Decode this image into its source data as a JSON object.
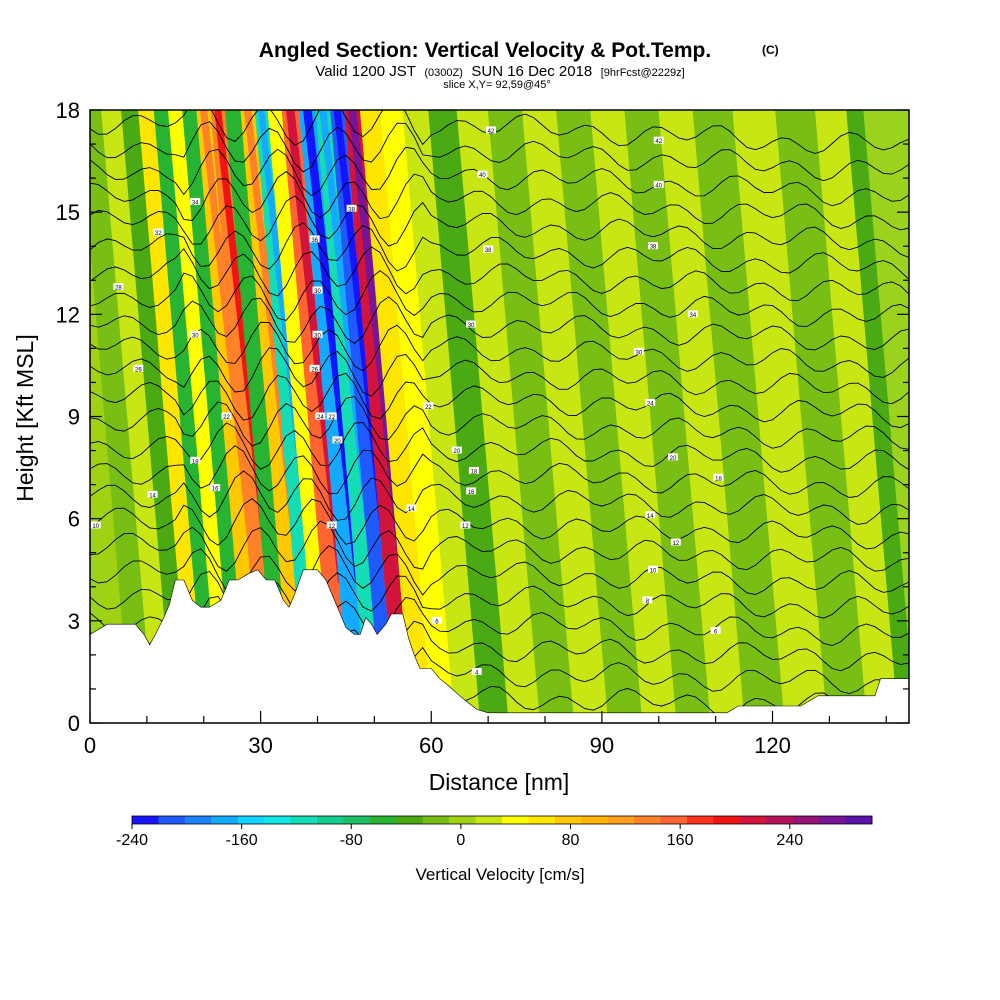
{
  "chart_data": {
    "type": "heatmap",
    "title": "Angled Section: Vertical Velocity & Pot.Temp.",
    "title_tag": "(C)",
    "subtitle_parts": [
      "Valid 1200 JST",
      "(0300Z)",
      "SUN 16 Dec 2018",
      "[9hrFcst@2229z]"
    ],
    "subtitle_line2": "slice X,Y= 92,59@45°",
    "xlabel": "Distance [nm]",
    "ylabel": "Height [Kft MSL]",
    "xlim": [
      0,
      144
    ],
    "ylim": [
      0,
      18
    ],
    "x_ticks": [
      0,
      30,
      60,
      90,
      120
    ],
    "y_ticks": [
      0,
      3,
      6,
      9,
      12,
      15,
      18
    ],
    "grid": false,
    "colorbar": {
      "label": "Vertical Velocity [cm/s]",
      "min": -240,
      "max": 300,
      "step": 20,
      "tick_values": [
        -240,
        -160,
        -80,
        0,
        80,
        160,
        240
      ],
      "colors": [
        "#1414ff",
        "#1e5aff",
        "#1e82ff",
        "#14aaff",
        "#14d2ff",
        "#14e6e6",
        "#14dcb4",
        "#14cd8c",
        "#1ebe64",
        "#28b432",
        "#4baa14",
        "#78be14",
        "#a0d214",
        "#c8e614",
        "#ffff00",
        "#ffe600",
        "#ffc800",
        "#ffb400",
        "#ffa01e",
        "#ff8228",
        "#ff6432",
        "#ff321e",
        "#f01414",
        "#d2143c",
        "#b4145a",
        "#961478",
        "#781496",
        "#5a14aa"
      ]
    },
    "vertical_velocity_bands": [
      {
        "x": 3,
        "v": 10
      },
      {
        "x": 7,
        "v": -20
      },
      {
        "x": 11,
        "v": 30
      },
      {
        "x": 14,
        "v": -30
      },
      {
        "x": 17,
        "v": 60
      },
      {
        "x": 19.5,
        "v": -60
      },
      {
        "x": 22,
        "v": 40
      },
      {
        "x": 24.5,
        "v": -50
      },
      {
        "x": 27,
        "v": 90
      },
      {
        "x": 29.5,
        "v": 150
      },
      {
        "x": 32,
        "v": -60
      },
      {
        "x": 35,
        "v": 80
      },
      {
        "x": 37,
        "v": -110
      },
      {
        "x": 39.5,
        "v": 50
      },
      {
        "x": 42,
        "v": 170
      },
      {
        "x": 45.5,
        "v": -170
      },
      {
        "x": 48,
        "v": -120
      },
      {
        "x": 50.5,
        "v": -220
      },
      {
        "x": 53,
        "v": 230
      },
      {
        "x": 56,
        "v": 60
      },
      {
        "x": 60,
        "v": 40
      },
      {
        "x": 64,
        "v": 30
      },
      {
        "x": 69,
        "v": -40
      },
      {
        "x": 74,
        "v": 20
      },
      {
        "x": 80,
        "v": -20
      },
      {
        "x": 86,
        "v": 20
      },
      {
        "x": 92,
        "v": -10
      },
      {
        "x": 98,
        "v": 30
      },
      {
        "x": 104,
        "v": -20
      },
      {
        "x": 110,
        "v": 20
      },
      {
        "x": 116,
        "v": -10
      },
      {
        "x": 124,
        "v": 20
      },
      {
        "x": 131,
        "v": -20
      },
      {
        "x": 138,
        "v": 30
      },
      {
        "x": 142,
        "v": -30
      }
    ],
    "theta_contour_levels": 24,
    "terrain": [
      [
        0,
        2.6
      ],
      [
        3,
        2.9
      ],
      [
        8,
        2.9
      ],
      [
        9.5,
        2.6
      ],
      [
        10.5,
        2.3
      ],
      [
        11.5,
        2.6
      ],
      [
        13,
        3.1
      ],
      [
        14,
        3.5
      ],
      [
        15,
        4.2
      ],
      [
        16.5,
        4.2
      ],
      [
        18,
        3.6
      ],
      [
        19.5,
        3.4
      ],
      [
        21,
        3.4
      ],
      [
        23,
        3.6
      ],
      [
        24.5,
        4.2
      ],
      [
        26,
        4.2
      ],
      [
        28,
        4.4
      ],
      [
        29.5,
        4.5
      ],
      [
        31,
        4.2
      ],
      [
        32.5,
        4.2
      ],
      [
        34,
        3.6
      ],
      [
        35,
        3.4
      ],
      [
        36,
        3.8
      ],
      [
        37.5,
        4.5
      ],
      [
        40,
        4.5
      ],
      [
        41.5,
        4.2
      ],
      [
        42.5,
        3.8
      ],
      [
        44,
        3.2
      ],
      [
        45,
        2.8
      ],
      [
        46.5,
        2.6
      ],
      [
        47.5,
        2.6
      ],
      [
        48.5,
        3.1
      ],
      [
        49.5,
        2.9
      ],
      [
        50.5,
        2.6
      ],
      [
        52,
        2.9
      ],
      [
        53,
        3.2
      ],
      [
        55,
        3.2
      ],
      [
        56,
        2.5
      ],
      [
        57,
        2.0
      ],
      [
        58,
        1.6
      ],
      [
        60,
        1.6
      ],
      [
        61.5,
        1.3
      ],
      [
        63,
        1.1
      ],
      [
        65,
        0.8
      ],
      [
        66.5,
        0.6
      ],
      [
        68,
        0.4
      ],
      [
        70,
        0.3
      ],
      [
        80,
        0.3
      ],
      [
        95,
        0.3
      ],
      [
        112,
        0.3
      ],
      [
        114,
        0.5
      ],
      [
        125,
        0.5
      ],
      [
        128,
        0.8
      ],
      [
        138,
        0.8
      ],
      [
        139,
        1.3
      ],
      [
        144,
        1.3
      ]
    ],
    "contour_labels": [
      {
        "x": 1,
        "y": 5.8,
        "t": "10"
      },
      {
        "x": 11,
        "y": 6.7,
        "t": "14"
      },
      {
        "x": 18.5,
        "y": 7.7,
        "t": "18"
      },
      {
        "x": 22,
        "y": 6.9,
        "t": "16"
      },
      {
        "x": 24,
        "y": 9.0,
        "t": "22"
      },
      {
        "x": 8.5,
        "y": 10.4,
        "t": "26"
      },
      {
        "x": 5,
        "y": 12.8,
        "t": "28"
      },
      {
        "x": 18.5,
        "y": 11.4,
        "t": "30"
      },
      {
        "x": 12,
        "y": 14.4,
        "t": "32"
      },
      {
        "x": 18.5,
        "y": 15.3,
        "t": "34"
      },
      {
        "x": 39.5,
        "y": 14.2,
        "t": "36"
      },
      {
        "x": 40,
        "y": 12.7,
        "t": "30"
      },
      {
        "x": 40,
        "y": 11.4,
        "t": "30"
      },
      {
        "x": 39.5,
        "y": 10.4,
        "t": "26"
      },
      {
        "x": 40.5,
        "y": 9.0,
        "t": "24"
      },
      {
        "x": 42.5,
        "y": 9.0,
        "t": "22"
      },
      {
        "x": 43.5,
        "y": 8.3,
        "t": "20"
      },
      {
        "x": 46,
        "y": 15.1,
        "t": "38"
      },
      {
        "x": 42.5,
        "y": 5.8,
        "t": "12"
      },
      {
        "x": 56.5,
        "y": 6.3,
        "t": "14"
      },
      {
        "x": 59.5,
        "y": 9.3,
        "t": "22"
      },
      {
        "x": 64.5,
        "y": 8.0,
        "t": "20"
      },
      {
        "x": 67,
        "y": 11.7,
        "t": "30"
      },
      {
        "x": 70,
        "y": 13.9,
        "t": "38"
      },
      {
        "x": 69,
        "y": 16.1,
        "t": "40"
      },
      {
        "x": 70.5,
        "y": 17.4,
        "t": "42"
      },
      {
        "x": 67.5,
        "y": 7.4,
        "t": "18"
      },
      {
        "x": 67,
        "y": 6.8,
        "t": "16"
      },
      {
        "x": 66,
        "y": 5.8,
        "t": "12"
      },
      {
        "x": 61,
        "y": 3.0,
        "t": "6"
      },
      {
        "x": 68,
        "y": 1.5,
        "t": "4"
      },
      {
        "x": 100,
        "y": 17.1,
        "t": "42"
      },
      {
        "x": 100,
        "y": 15.8,
        "t": "40"
      },
      {
        "x": 99,
        "y": 14.0,
        "t": "38"
      },
      {
        "x": 106,
        "y": 12.0,
        "t": "34"
      },
      {
        "x": 96.5,
        "y": 10.9,
        "t": "30"
      },
      {
        "x": 98.5,
        "y": 9.4,
        "t": "24"
      },
      {
        "x": 102.5,
        "y": 7.8,
        "t": "20"
      },
      {
        "x": 110.5,
        "y": 7.2,
        "t": "18"
      },
      {
        "x": 98.5,
        "y": 6.1,
        "t": "14"
      },
      {
        "x": 103,
        "y": 5.3,
        "t": "12"
      },
      {
        "x": 99,
        "y": 4.5,
        "t": "10"
      },
      {
        "x": 98,
        "y": 3.6,
        "t": "8"
      },
      {
        "x": 110,
        "y": 2.7,
        "t": "6"
      }
    ]
  }
}
